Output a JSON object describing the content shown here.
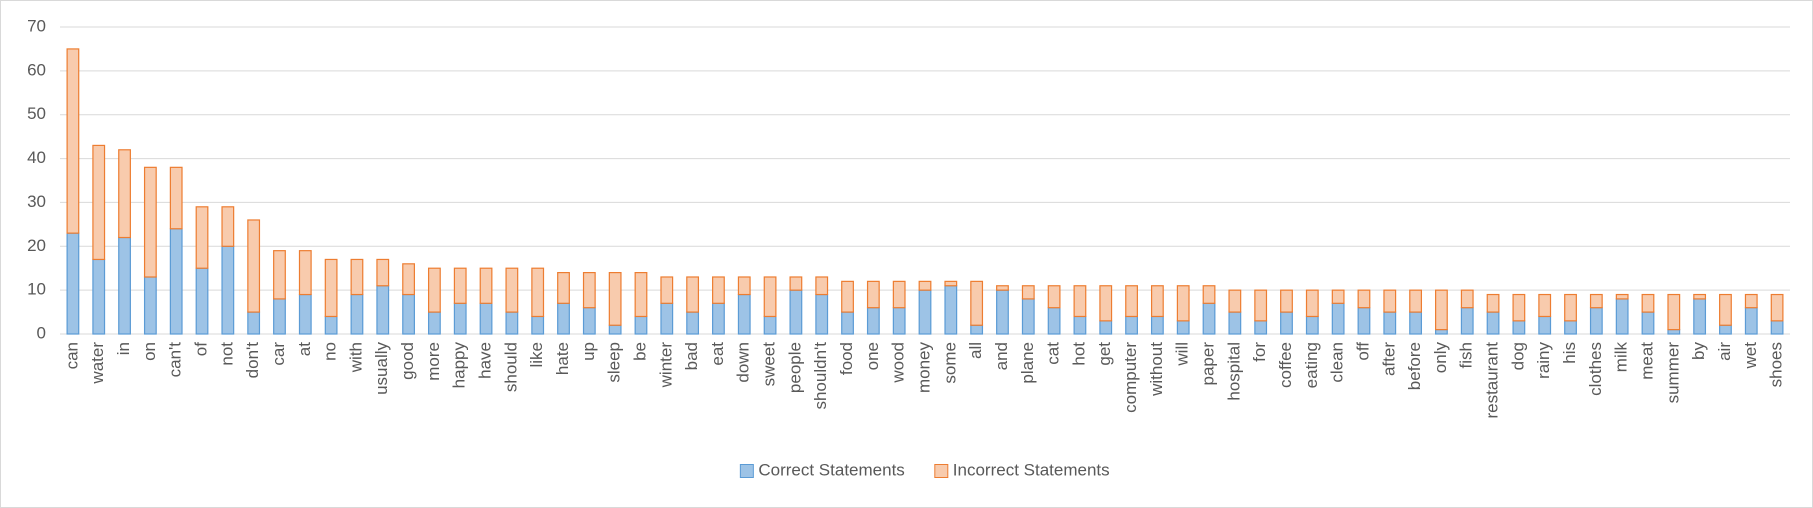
{
  "chart_data": {
    "type": "bar",
    "stacked": true,
    "categories": [
      "can",
      "water",
      "in",
      "on",
      "can't",
      "of",
      "not",
      "don't",
      "car",
      "at",
      "no",
      "with",
      "usually",
      "good",
      "more",
      "happy",
      "have",
      "should",
      "like",
      "hate",
      "up",
      "sleep",
      "be",
      "winter",
      "bad",
      "eat",
      "down",
      "sweet",
      "people",
      "shouldn't",
      "food",
      "one",
      "wood",
      "money",
      "some",
      "all",
      "and",
      "plane",
      "cat",
      "hot",
      "get",
      "computer",
      "without",
      "will",
      "paper",
      "hospital",
      "for",
      "coffee",
      "eating",
      "clean",
      "off",
      "after",
      "before",
      "only",
      "fish",
      "restaurant",
      "dog",
      "rainy",
      "his",
      "clothes",
      "milk",
      "meat",
      "summer",
      "by",
      "air",
      "wet",
      "shoes"
    ],
    "series": [
      {
        "name": "Correct Statements",
        "color": "#9dc3e6",
        "border_color": "#5b9bd5",
        "values": [
          23,
          17,
          22,
          13,
          24,
          15,
          20,
          5,
          8,
          9,
          4,
          9,
          11,
          9,
          5,
          7,
          7,
          5,
          4,
          7,
          6,
          2,
          4,
          7,
          5,
          7,
          9,
          4,
          10,
          9,
          5,
          6,
          6,
          10,
          11,
          2,
          10,
          8,
          6,
          4,
          3,
          4,
          4,
          3,
          7,
          5,
          3,
          5,
          4,
          7,
          6,
          5,
          5,
          1,
          6,
          5,
          3,
          4,
          3,
          6,
          8,
          5,
          1,
          8,
          2,
          6,
          3
        ]
      },
      {
        "name": "Incorrect Statements",
        "color": "#f8cbad",
        "border_color": "#ed7d31",
        "values": [
          42,
          26,
          20,
          25,
          14,
          14,
          9,
          21,
          11,
          10,
          13,
          8,
          6,
          7,
          10,
          8,
          8,
          10,
          11,
          7,
          8,
          12,
          10,
          6,
          8,
          6,
          4,
          9,
          3,
          4,
          7,
          6,
          6,
          2,
          1,
          10,
          1,
          3,
          5,
          7,
          8,
          7,
          7,
          8,
          4,
          5,
          7,
          5,
          6,
          3,
          4,
          5,
          5,
          9,
          4,
          4,
          6,
          5,
          6,
          3,
          1,
          4,
          8,
          1,
          7,
          3,
          6
        ]
      }
    ],
    "ylim": [
      0,
      70
    ],
    "yticks": [
      0,
      10,
      20,
      30,
      40,
      50,
      60,
      70
    ],
    "grid": true,
    "legend": "bottom"
  }
}
